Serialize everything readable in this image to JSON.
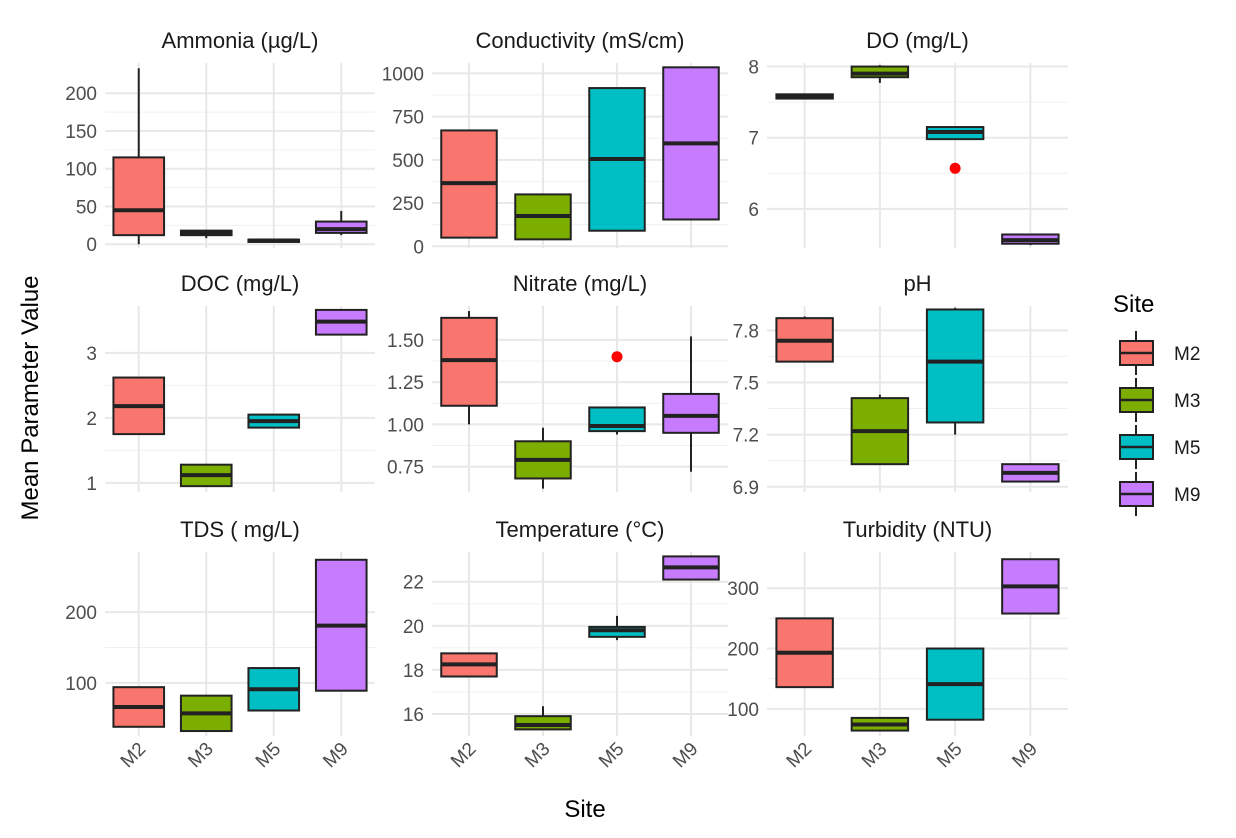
{
  "chart_data": {
    "type": "boxplot",
    "xlabel": "Site",
    "ylabel": "Mean Parameter Value",
    "categories": [
      "M2",
      "M3",
      "M5",
      "M9"
    ],
    "colors": {
      "M2": "#F8766D",
      "M3": "#7CAE00",
      "M5": "#00BFC4",
      "M9": "#C77CFF"
    },
    "outlier_color": "#FF0000",
    "grid": true,
    "legend": {
      "title": "Site",
      "position": "right",
      "entries": [
        "M2",
        "M3",
        "M5",
        "M9"
      ]
    },
    "panels": [
      {
        "title": "Ammonia (µg/L)",
        "ylim": [
          -5,
          240
        ],
        "yticks": [
          0,
          50,
          100,
          150,
          200
        ],
        "boxes": [
          {
            "site": "M2",
            "wlo": 0,
            "q1": 12,
            "med": 45,
            "q3": 115,
            "whi": 233
          },
          {
            "site": "M3",
            "wlo": 8,
            "q1": 12,
            "med": 15,
            "q3": 18,
            "whi": 19
          },
          {
            "site": "M5",
            "wlo": 2,
            "q1": 3,
            "med": 5,
            "q3": 6,
            "whi": 7
          },
          {
            "site": "M9",
            "wlo": 12,
            "q1": 15,
            "med": 20,
            "q3": 30,
            "whi": 44
          }
        ],
        "outliers": []
      },
      {
        "title": "Conductivity (mS/cm)",
        "ylim": [
          -10,
          1060
        ],
        "yticks": [
          0,
          250,
          500,
          750,
          1000
        ],
        "boxes": [
          {
            "site": "M2",
            "wlo": 50,
            "q1": 50,
            "med": 365,
            "q3": 670,
            "whi": 670
          },
          {
            "site": "M3",
            "wlo": 40,
            "q1": 40,
            "med": 175,
            "q3": 300,
            "whi": 300
          },
          {
            "site": "M5",
            "wlo": 90,
            "q1": 90,
            "med": 505,
            "q3": 915,
            "whi": 915
          },
          {
            "site": "M9",
            "wlo": 155,
            "q1": 155,
            "med": 595,
            "q3": 1035,
            "whi": 1035
          }
        ],
        "outliers": []
      },
      {
        "title": "DO (mg/L)",
        "ylim": [
          5.45,
          8.05
        ],
        "yticks": [
          6,
          7,
          8
        ],
        "boxes": [
          {
            "site": "M2",
            "wlo": 7.55,
            "q1": 7.55,
            "med": 7.58,
            "q3": 7.61,
            "whi": 7.61
          },
          {
            "site": "M3",
            "wlo": 7.77,
            "q1": 7.85,
            "med": 7.9,
            "q3": 8.0,
            "whi": 8.02
          },
          {
            "site": "M5",
            "wlo": 6.98,
            "q1": 6.98,
            "med": 7.08,
            "q3": 7.15,
            "whi": 7.15
          },
          {
            "site": "M9",
            "wlo": 5.49,
            "q1": 5.51,
            "med": 5.56,
            "q3": 5.64,
            "whi": 5.64
          }
        ],
        "outliers": [
          {
            "site": "M5",
            "value": 6.57
          }
        ]
      },
      {
        "title": "DOC (mg/L)",
        "ylim": [
          0.86,
          3.72
        ],
        "yticks": [
          1,
          2,
          3
        ],
        "boxes": [
          {
            "site": "M2",
            "wlo": 1.75,
            "q1": 1.75,
            "med": 2.18,
            "q3": 2.62,
            "whi": 2.62
          },
          {
            "site": "M3",
            "wlo": 0.95,
            "q1": 0.95,
            "med": 1.12,
            "q3": 1.28,
            "whi": 1.28
          },
          {
            "site": "M5",
            "wlo": 1.85,
            "q1": 1.85,
            "med": 1.95,
            "q3": 2.05,
            "whi": 2.05
          },
          {
            "site": "M9",
            "wlo": 3.28,
            "q1": 3.28,
            "med": 3.48,
            "q3": 3.66,
            "whi": 3.66
          }
        ],
        "outliers": []
      },
      {
        "title": "Nitrate (mg/L)",
        "ylim": [
          0.6,
          1.7
        ],
        "yticks": [
          0.75,
          1.0,
          1.25,
          1.5
        ],
        "ytick_labels": [
          "0.75",
          "1.00",
          "1.25",
          "1.50"
        ],
        "boxes": [
          {
            "site": "M2",
            "wlo": 1.0,
            "q1": 1.11,
            "med": 1.38,
            "q3": 1.63,
            "whi": 1.67
          },
          {
            "site": "M3",
            "wlo": 0.62,
            "q1": 0.68,
            "med": 0.79,
            "q3": 0.9,
            "whi": 0.98
          },
          {
            "site": "M5",
            "wlo": 0.94,
            "q1": 0.96,
            "med": 0.99,
            "q3": 1.1,
            "whi": 1.1
          },
          {
            "site": "M9",
            "wlo": 0.72,
            "q1": 0.95,
            "med": 1.05,
            "q3": 1.18,
            "whi": 1.52
          }
        ],
        "outliers": [
          {
            "site": "M5",
            "value": 1.4
          }
        ]
      },
      {
        "title": "pH",
        "ylim": [
          6.87,
          7.94
        ],
        "yticks": [
          6.9,
          7.2,
          7.5,
          7.8
        ],
        "ytick_labels": [
          "6.9",
          "7.2",
          "7.5",
          "7.8"
        ],
        "boxes": [
          {
            "site": "M2",
            "wlo": 7.62,
            "q1": 7.62,
            "med": 7.74,
            "q3": 7.87,
            "whi": 7.88
          },
          {
            "site": "M3",
            "wlo": 7.03,
            "q1": 7.03,
            "med": 7.22,
            "q3": 7.41,
            "whi": 7.43
          },
          {
            "site": "M5",
            "wlo": 7.2,
            "q1": 7.27,
            "med": 7.62,
            "q3": 7.92,
            "whi": 7.93
          },
          {
            "site": "M9",
            "wlo": 6.93,
            "q1": 6.93,
            "med": 6.98,
            "q3": 7.03,
            "whi": 7.03
          }
        ],
        "outliers": []
      },
      {
        "title": "TDS ( mg/L)",
        "ylim": [
          25,
          285
        ],
        "yticks": [
          100,
          200
        ],
        "boxes": [
          {
            "site": "M2",
            "wlo": 38,
            "q1": 38,
            "med": 66,
            "q3": 94,
            "whi": 94
          },
          {
            "site": "M3",
            "wlo": 32,
            "q1": 32,
            "med": 57,
            "q3": 82,
            "whi": 82
          },
          {
            "site": "M5",
            "wlo": 61,
            "q1": 61,
            "med": 91,
            "q3": 121,
            "whi": 121
          },
          {
            "site": "M9",
            "wlo": 89,
            "q1": 89,
            "med": 181,
            "q3": 274,
            "whi": 274
          }
        ],
        "outliers": []
      },
      {
        "title": "Temperature (°C)",
        "ylim": [
          15.0,
          23.35
        ],
        "yticks": [
          16,
          18,
          20,
          22
        ],
        "boxes": [
          {
            "site": "M2",
            "wlo": 17.7,
            "q1": 17.7,
            "med": 18.25,
            "q3": 18.75,
            "whi": 18.75
          },
          {
            "site": "M3",
            "wlo": 15.3,
            "q1": 15.3,
            "med": 15.5,
            "q3": 15.9,
            "whi": 16.35
          },
          {
            "site": "M5",
            "wlo": 19.35,
            "q1": 19.5,
            "med": 19.8,
            "q3": 19.95,
            "whi": 20.45
          },
          {
            "site": "M9",
            "wlo": 22.1,
            "q1": 22.1,
            "med": 22.65,
            "q3": 23.15,
            "whi": 23.15
          }
        ],
        "outliers": []
      },
      {
        "title": "Turbidity (NTU)",
        "ylim": [
          55,
          360
        ],
        "yticks": [
          100,
          200,
          300
        ],
        "boxes": [
          {
            "site": "M2",
            "wlo": 136,
            "q1": 136,
            "med": 193,
            "q3": 250,
            "whi": 250
          },
          {
            "site": "M3",
            "wlo": 64,
            "q1": 64,
            "med": 74,
            "q3": 85,
            "whi": 85
          },
          {
            "site": "M5",
            "wlo": 82,
            "q1": 82,
            "med": 141,
            "q3": 200,
            "whi": 200
          },
          {
            "site": "M9",
            "wlo": 258,
            "q1": 258,
            "med": 303,
            "q3": 348,
            "whi": 348
          }
        ],
        "outliers": []
      }
    ]
  }
}
